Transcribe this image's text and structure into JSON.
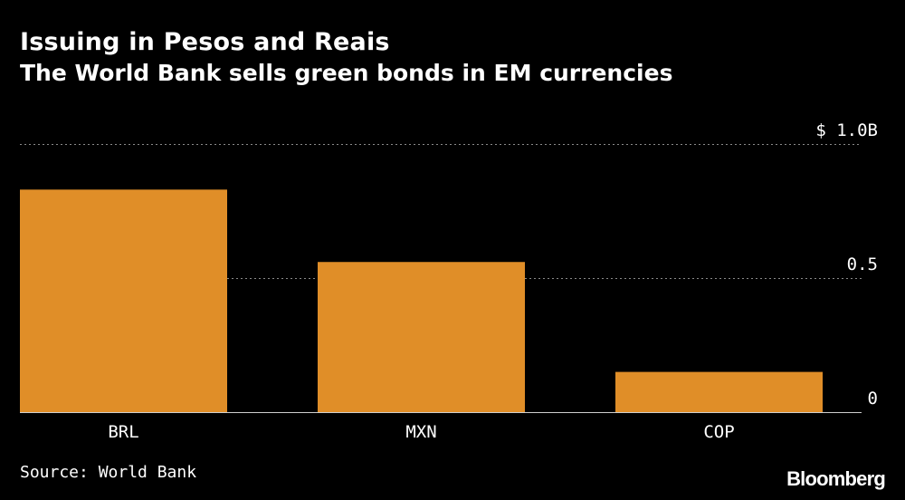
{
  "header": {
    "title": "Issuing in Pesos and Reais",
    "subtitle": "The World Bank sells green bonds in EM currencies"
  },
  "footer": {
    "source": "Source: World Bank",
    "brand": "Bloomberg"
  },
  "colors": {
    "background": "#000000",
    "bar": "#E08E28",
    "text": "#FFFFFF",
    "gridline": "#8A8A8A"
  },
  "chart_data": {
    "type": "bar",
    "categories": [
      "BRL",
      "MXN",
      "COP"
    ],
    "values": [
      0.83,
      0.56,
      0.15
    ],
    "ylim": [
      0,
      1.0
    ],
    "yticks": [
      {
        "value": 0,
        "label": "0"
      },
      {
        "value": 0.5,
        "label": "0.5"
      },
      {
        "value": 1.0,
        "label": "$ 1.0B"
      }
    ],
    "ylabel": "",
    "xlabel": "",
    "grid": true,
    "legend": "none"
  }
}
